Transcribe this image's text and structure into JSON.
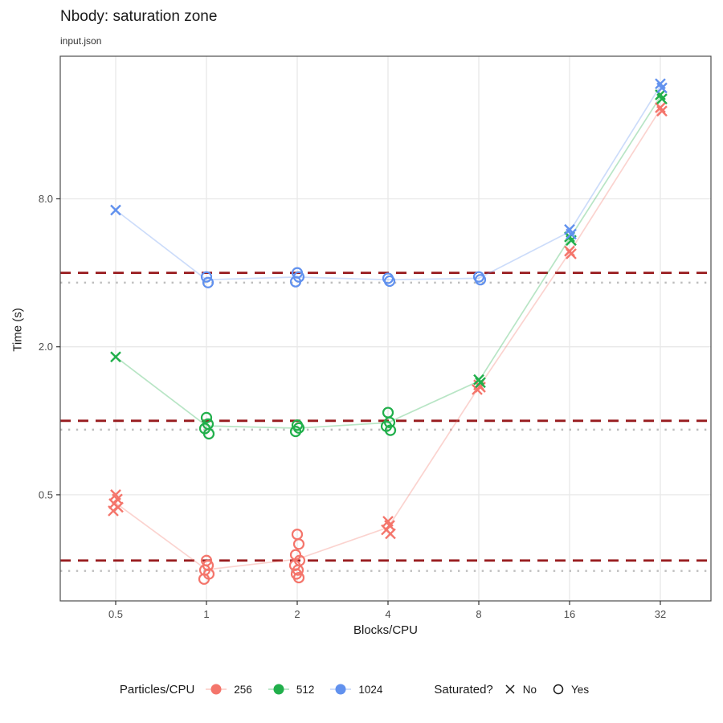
{
  "figure": {
    "title": "Nbody: saturation zone",
    "subtitle": "input.json",
    "xlabel": "Blocks/CPU",
    "ylabel": "Time (s)"
  },
  "legend": {
    "color_title": "Particles/CPU",
    "color_items": [
      "256",
      "512",
      "1024"
    ],
    "shape_title": "Saturated?",
    "shape_items": [
      {
        "shape": "x",
        "label": "No"
      },
      {
        "shape": "circle",
        "label": "Yes"
      }
    ]
  },
  "chart_data": {
    "type": "scatter",
    "title": "Nbody: saturation zone",
    "subtitle": "input.json",
    "xlabel": "Blocks/CPU",
    "ylabel": "Time (s)",
    "x_scale": "log2",
    "y_scale": "log",
    "x_ticks": [
      0.5,
      1,
      2,
      4,
      8,
      16,
      32
    ],
    "x_tick_labels": [
      "0.5",
      "1",
      "2",
      "4",
      "8",
      "16",
      "32"
    ],
    "y_ticks": [
      0.5,
      2.0,
      8.0
    ],
    "y_tick_labels": [
      "0.5",
      "2.0",
      "8.0"
    ],
    "ylim": [
      0.185,
      30.5
    ],
    "grid": "major-only",
    "legend_position": "bottom",
    "shape_encoding": {
      "x_mark": "not saturated",
      "open_circle": "saturated"
    },
    "colors": {
      "grid": "#E8E8E8",
      "panel_border": "#4D4D4D",
      "tick_mark": "#333333",
      "tick_text": "#4D4D4D",
      "dashed_threshold": "#981B1E",
      "dotted_threshold": "#BDBDBD"
    },
    "series": [
      {
        "name": "256",
        "color": "#F4756B",
        "groups": [
          {
            "x": 0.5,
            "saturated": false,
            "values": [
              0.5,
              0.48,
              0.46,
              0.445,
              0.43
            ]
          },
          {
            "x": 1,
            "saturated": true,
            "values": [
              0.27,
              0.258,
              0.247,
              0.238,
              0.227
            ]
          },
          {
            "x": 2,
            "saturated": true,
            "values": [
              0.345,
              0.315,
              0.285,
              0.27,
              0.258,
              0.247,
              0.238,
              0.23
            ]
          },
          {
            "x": 4,
            "saturated": false,
            "values": [
              0.39,
              0.375,
              0.36,
              0.347
            ]
          },
          {
            "x": 8,
            "saturated": false,
            "values": [
              1.4,
              1.37,
              1.34
            ]
          },
          {
            "x": 16,
            "saturated": false,
            "values": [
              4.9,
              4.78
            ]
          },
          {
            "x": 32,
            "saturated": false,
            "values": [
              18.8,
              18.2
            ]
          }
        ]
      },
      {
        "name": "512",
        "color": "#21AF4B",
        "groups": [
          {
            "x": 0.5,
            "saturated": false,
            "values": [
              1.82
            ]
          },
          {
            "x": 1,
            "saturated": true,
            "values": [
              1.03,
              0.97,
              0.93,
              0.885
            ]
          },
          {
            "x": 2,
            "saturated": true,
            "values": [
              0.96,
              0.935,
              0.905
            ]
          },
          {
            "x": 4,
            "saturated": true,
            "values": [
              1.08,
              0.985,
              0.95,
              0.915
            ]
          },
          {
            "x": 8,
            "saturated": false,
            "values": [
              1.47,
              1.43
            ]
          },
          {
            "x": 16,
            "saturated": false,
            "values": [
              5.6,
              5.42
            ]
          },
          {
            "x": 32,
            "saturated": false,
            "values": [
              21.2,
              20.4
            ]
          }
        ]
      },
      {
        "name": "1024",
        "color": "#6191EE",
        "groups": [
          {
            "x": 0.5,
            "saturated": false,
            "values": [
              7.2
            ]
          },
          {
            "x": 1,
            "saturated": true,
            "values": [
              3.85,
              3.65
            ]
          },
          {
            "x": 2,
            "saturated": true,
            "values": [
              4.0,
              3.85,
              3.68
            ]
          },
          {
            "x": 4,
            "saturated": true,
            "values": [
              3.8,
              3.7
            ]
          },
          {
            "x": 8,
            "saturated": true,
            "values": [
              3.85,
              3.75
            ]
          },
          {
            "x": 16,
            "saturated": false,
            "values": [
              6.0,
              5.75
            ]
          },
          {
            "x": 32,
            "saturated": false,
            "values": [
              23.5,
              22.6
            ]
          }
        ]
      }
    ],
    "thresholds": [
      {
        "series": "256",
        "dashed": 0.27,
        "dotted": 0.245
      },
      {
        "series": "512",
        "dashed": 1.0,
        "dotted": 0.92
      },
      {
        "series": "1024",
        "dashed": 4.0,
        "dotted": 3.65
      }
    ]
  }
}
